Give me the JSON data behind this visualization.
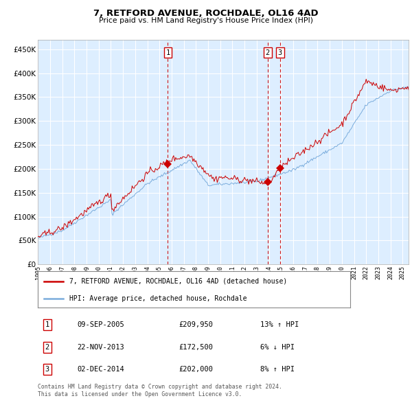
{
  "title": "7, RETFORD AVENUE, ROCHDALE, OL16 4AD",
  "subtitle": "Price paid vs. HM Land Registry's House Price Index (HPI)",
  "ytick_values": [
    0,
    50000,
    100000,
    150000,
    200000,
    250000,
    300000,
    350000,
    400000,
    450000
  ],
  "ylim": [
    0,
    470000
  ],
  "xlim_start": 1995.0,
  "xlim_end": 2025.5,
  "sale_dates": [
    2005.69,
    2013.9,
    2014.92
  ],
  "sale_prices": [
    209950,
    172500,
    202000
  ],
  "sale_labels": [
    "1",
    "2",
    "3"
  ],
  "dashed_line_color": "#cc0000",
  "hpi_line_color": "#7aacdc",
  "property_line_color": "#cc0000",
  "plot_bg_color": "#ddeeff",
  "legend_entries": [
    "7, RETFORD AVENUE, ROCHDALE, OL16 4AD (detached house)",
    "HPI: Average price, detached house, Rochdale"
  ],
  "table_data": [
    [
      "1",
      "09-SEP-2005",
      "£209,950",
      "13% ↑ HPI"
    ],
    [
      "2",
      "22-NOV-2013",
      "£172,500",
      "6% ↓ HPI"
    ],
    [
      "3",
      "02-DEC-2014",
      "£202,000",
      "8% ↑ HPI"
    ]
  ],
  "footnote": "Contains HM Land Registry data © Crown copyright and database right 2024.\nThis data is licensed under the Open Government Licence v3.0.",
  "background_color": "#ffffff",
  "grid_color": "#ffffff"
}
